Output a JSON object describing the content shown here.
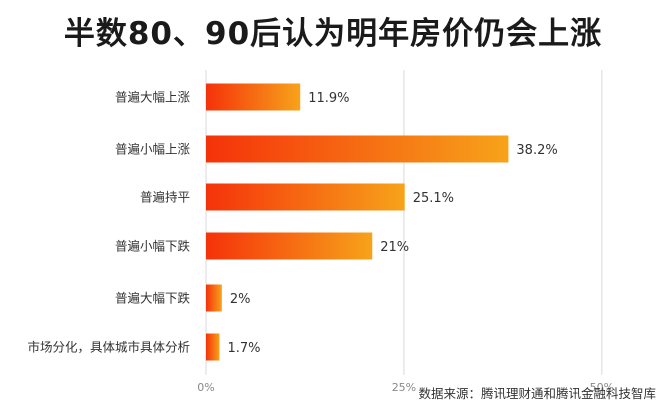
{
  "title": "半数80、90后认为明年房价仍会上涨",
  "source": "数据来源：腾讯理财通和腾讯金融科技智库",
  "colors": {
    "bar_start": "#f5320a",
    "bar_end": "#f7a31a",
    "grid": "#d9d9d9"
  },
  "chart_data": {
    "type": "bar",
    "orientation": "horizontal",
    "categories": [
      "普遍大幅上涨",
      "普遍小幅上涨",
      "普遍持平",
      "普遍小幅下跌",
      "普遍大幅下跌",
      "市场分化，具体城市具体分析"
    ],
    "values": [
      11.9,
      38.2,
      25.1,
      21,
      2,
      1.7
    ],
    "value_labels": [
      "11.9%",
      "38.2%",
      "25.1%",
      "21%",
      "2%",
      "1.7%"
    ],
    "xlim": [
      0,
      60
    ],
    "xticks": [
      0,
      25,
      50
    ],
    "xtick_labels": [
      "0%",
      "25%",
      "50%"
    ],
    "grid": true
  }
}
